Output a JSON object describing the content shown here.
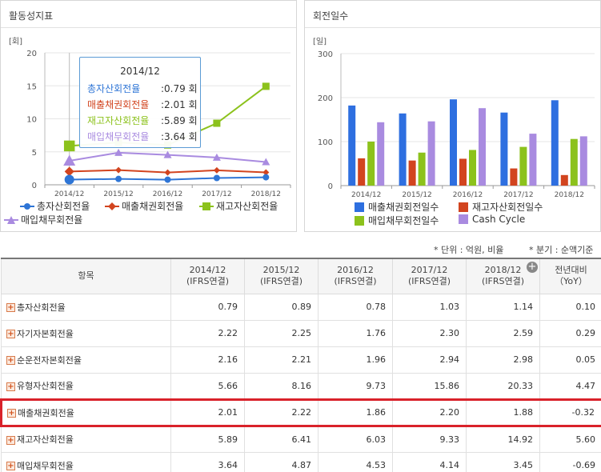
{
  "left_panel": {
    "title": "활동성지표",
    "unit": "[회]",
    "legend": [
      {
        "name": "총자산회전율",
        "color": "#2e75d6",
        "marker": "circle-icon"
      },
      {
        "name": "매출채권회전율",
        "color": "#d2441f",
        "marker": "diamond-icon"
      },
      {
        "name": "재고자산회전율",
        "color": "#8cc21c",
        "marker": "square-icon"
      },
      {
        "name": "매입채무회전율",
        "color": "#a98be0",
        "marker": "triangle-icon"
      }
    ],
    "tooltip": {
      "title": "2014/12",
      "rows": [
        {
          "label": "총자산회전율",
          "value": ":0.79 회",
          "color": "#2e75d6"
        },
        {
          "label": "매출채권회전율",
          "value": ":2.01 회",
          "color": "#d2441f"
        },
        {
          "label": "재고자산회전율",
          "value": ":5.89 회",
          "color": "#8cc21c"
        },
        {
          "label": "매입채무회전율",
          "value": ":3.64 회",
          "color": "#a98be0"
        }
      ]
    }
  },
  "right_panel": {
    "title": "회전일수",
    "unit": "[일]",
    "legend": [
      {
        "name": "매출채권회전일수",
        "color": "#2e6fe0"
      },
      {
        "name": "재고자산회전일수",
        "color": "#d2441f"
      },
      {
        "name": "매입채무회전일수",
        "color": "#8cc21c"
      },
      {
        "name": "Cash Cycle",
        "color": "#a98be0"
      }
    ]
  },
  "chart_data": [
    {
      "type": "line",
      "categories": [
        "2014/12",
        "2015/12",
        "2016/12",
        "2017/12",
        "2018/12"
      ],
      "ylim": [
        0,
        20
      ],
      "yticks": [
        "0",
        "5",
        "10",
        "15",
        "20"
      ],
      "ylabel": "[회]",
      "series": [
        {
          "name": "총자산회전율",
          "values": [
            0.79,
            0.89,
            0.78,
            1.03,
            1.14
          ]
        },
        {
          "name": "매출채권회전율",
          "values": [
            2.01,
            2.22,
            1.86,
            2.2,
            1.88
          ]
        },
        {
          "name": "재고자산회전율",
          "values": [
            5.89,
            6.41,
            6.03,
            9.33,
            14.92
          ]
        },
        {
          "name": "매입채무회전율",
          "values": [
            3.64,
            4.87,
            4.53,
            4.14,
            3.45
          ]
        }
      ]
    },
    {
      "type": "bar",
      "categories": [
        "2014/12",
        "2015/12",
        "2016/12",
        "2017/12",
        "2018/12"
      ],
      "ylim": [
        0,
        300
      ],
      "yticks": [
        "0",
        "100",
        "200",
        "300"
      ],
      "ylabel": "[일]",
      "series": [
        {
          "name": "매출채권회전일수",
          "values": [
            182,
            164,
            196,
            166,
            194
          ]
        },
        {
          "name": "재고자산회전일수",
          "values": [
            62,
            57,
            61,
            39,
            24
          ]
        },
        {
          "name": "매입채무회전일수",
          "values": [
            100,
            75,
            81,
            88,
            106
          ]
        },
        {
          "name": "Cash Cycle",
          "values": [
            144,
            146,
            176,
            118,
            112
          ]
        }
      ]
    }
  ],
  "notes": {
    "unit": "* 단위 : 억원, 비율",
    "period": "* 분기 : 순액기준"
  },
  "table": {
    "item_header": "항목",
    "columns": [
      {
        "line1": "2014/12",
        "line2": "(IFRS연결)"
      },
      {
        "line1": "2015/12",
        "line2": "(IFRS연결)"
      },
      {
        "line1": "2016/12",
        "line2": "(IFRS연결)"
      },
      {
        "line1": "2017/12",
        "line2": "(IFRS연결)"
      },
      {
        "line1": "2018/12",
        "line2": "(IFRS연결)"
      },
      {
        "line1": "전년대비",
        "line2": "（YoY）"
      }
    ],
    "rows": [
      {
        "label": "총자산회전율",
        "values": [
          "0.79",
          "0.89",
          "0.78",
          "1.03",
          "1.14",
          "0.10"
        ]
      },
      {
        "label": "자기자본회전율",
        "values": [
          "2.22",
          "2.25",
          "1.76",
          "2.30",
          "2.59",
          "0.29"
        ]
      },
      {
        "label": "순운전자본회전율",
        "values": [
          "2.16",
          "2.21",
          "1.96",
          "2.94",
          "2.98",
          "0.05"
        ]
      },
      {
        "label": "유형자산회전율",
        "values": [
          "5.66",
          "8.16",
          "9.73",
          "15.86",
          "20.33",
          "4.47"
        ]
      },
      {
        "label": "매출채권회전율",
        "values": [
          "2.01",
          "2.22",
          "1.86",
          "2.20",
          "1.88",
          "-0.32"
        ]
      },
      {
        "label": "재고자산회전율",
        "values": [
          "5.89",
          "6.41",
          "6.03",
          "9.33",
          "14.92",
          "5.60"
        ]
      },
      {
        "label": "매입채무회전율",
        "values": [
          "3.64",
          "4.87",
          "4.53",
          "4.14",
          "3.45",
          "-0.69"
        ]
      }
    ]
  }
}
